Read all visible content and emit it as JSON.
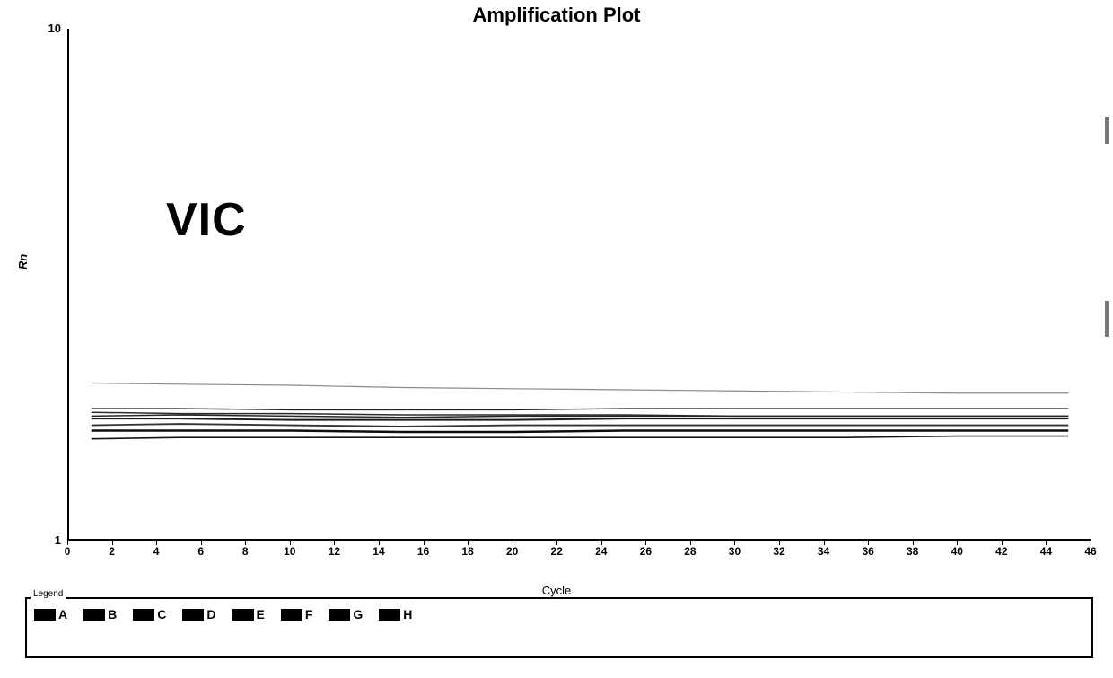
{
  "chart": {
    "type": "line",
    "title": "Amplification Plot",
    "annotation": "VIC",
    "x_label": "Cycle",
    "y_label": "Rn",
    "background_color": "#ffffff",
    "axis_color": "#000000",
    "title_fontsize": 22,
    "annotation_fontsize": 52,
    "label_fontsize": 13,
    "tick_fontsize": 12,
    "x": {
      "min": 0,
      "max": 46,
      "ticks": [
        0,
        2,
        4,
        6,
        8,
        10,
        12,
        14,
        16,
        18,
        20,
        22,
        24,
        26,
        28,
        30,
        32,
        34,
        36,
        38,
        40,
        42,
        44,
        46
      ],
      "scale": "linear"
    },
    "y": {
      "min": 1,
      "max": 10,
      "ticks": [
        1,
        10
      ],
      "scale": "log"
    },
    "series_x": [
      1,
      5,
      10,
      15,
      20,
      25,
      30,
      35,
      40,
      45
    ],
    "series": [
      {
        "name": "A",
        "color": "#1a1a1a",
        "width": 2.0,
        "y": [
          1.72,
          1.72,
          1.71,
          1.71,
          1.71,
          1.72,
          1.72,
          1.72,
          1.72,
          1.72
        ]
      },
      {
        "name": "B",
        "color": "#2a2a2a",
        "width": 1.5,
        "y": [
          1.77,
          1.76,
          1.76,
          1.75,
          1.75,
          1.75,
          1.74,
          1.74,
          1.74,
          1.74
        ]
      },
      {
        "name": "C",
        "color": "#0d0d0d",
        "width": 2.5,
        "y": [
          1.63,
          1.63,
          1.63,
          1.62,
          1.62,
          1.63,
          1.63,
          1.63,
          1.63,
          1.63
        ]
      },
      {
        "name": "D",
        "color": "#333333",
        "width": 1.8,
        "y": [
          1.67,
          1.68,
          1.67,
          1.66,
          1.67,
          1.67,
          1.67,
          1.67,
          1.67,
          1.67
        ]
      },
      {
        "name": "E",
        "color": "#1f1f1f",
        "width": 1.4,
        "y": [
          1.8,
          1.8,
          1.79,
          1.79,
          1.79,
          1.8,
          1.8,
          1.8,
          1.8,
          1.8
        ]
      },
      {
        "name": "F",
        "color": "#141414",
        "width": 1.6,
        "y": [
          1.57,
          1.58,
          1.58,
          1.58,
          1.58,
          1.58,
          1.58,
          1.58,
          1.59,
          1.59
        ]
      },
      {
        "name": "G",
        "color": "#262626",
        "width": 1.5,
        "y": [
          1.74,
          1.75,
          1.74,
          1.73,
          1.74,
          1.74,
          1.74,
          1.74,
          1.74,
          1.74
        ]
      },
      {
        "name": "H",
        "color": "#8a8a8a",
        "width": 1.2,
        "y": [
          2.02,
          2.01,
          2.0,
          1.98,
          1.97,
          1.96,
          1.95,
          1.94,
          1.93,
          1.93
        ]
      }
    ],
    "legend": {
      "title": "Legend",
      "swatch_color": "#000000",
      "border_color": "#000000",
      "items": [
        "A",
        "B",
        "C",
        "D",
        "E",
        "F",
        "G",
        "H"
      ]
    }
  }
}
